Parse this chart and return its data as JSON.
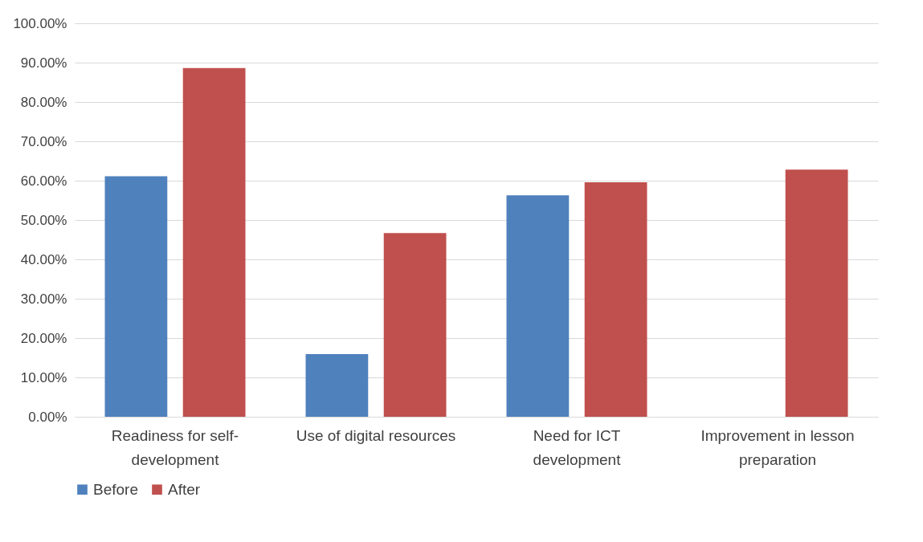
{
  "chart_data": {
    "type": "bar",
    "categories": [
      "Readiness for self-development",
      "Use of digital resources",
      "Need for ICT development",
      "Improvement in lesson preparation"
    ],
    "series": [
      {
        "name": "Before",
        "color": "#4f81bd",
        "values": [
          61.1,
          15.9,
          56.3,
          0
        ]
      },
      {
        "name": "After",
        "color": "#c0504d",
        "values": [
          88.6,
          46.7,
          59.6,
          62.8
        ]
      }
    ],
    "ylim": [
      0,
      100
    ],
    "yticks": [
      {
        "value": 0,
        "label": "0.00%"
      },
      {
        "value": 10,
        "label": "10.00%"
      },
      {
        "value": 20,
        "label": "20.00%"
      },
      {
        "value": 30,
        "label": "30.00%"
      },
      {
        "value": 40,
        "label": "40.00%"
      },
      {
        "value": 50,
        "label": "50.00%"
      },
      {
        "value": 60,
        "label": "60.00%"
      },
      {
        "value": 70,
        "label": "70.00%"
      },
      {
        "value": 80,
        "label": "80.00%"
      },
      {
        "value": 90,
        "label": "90.00%"
      },
      {
        "value": 100,
        "label": "100.00%"
      }
    ],
    "grid": "y",
    "legend": "bottom"
  }
}
